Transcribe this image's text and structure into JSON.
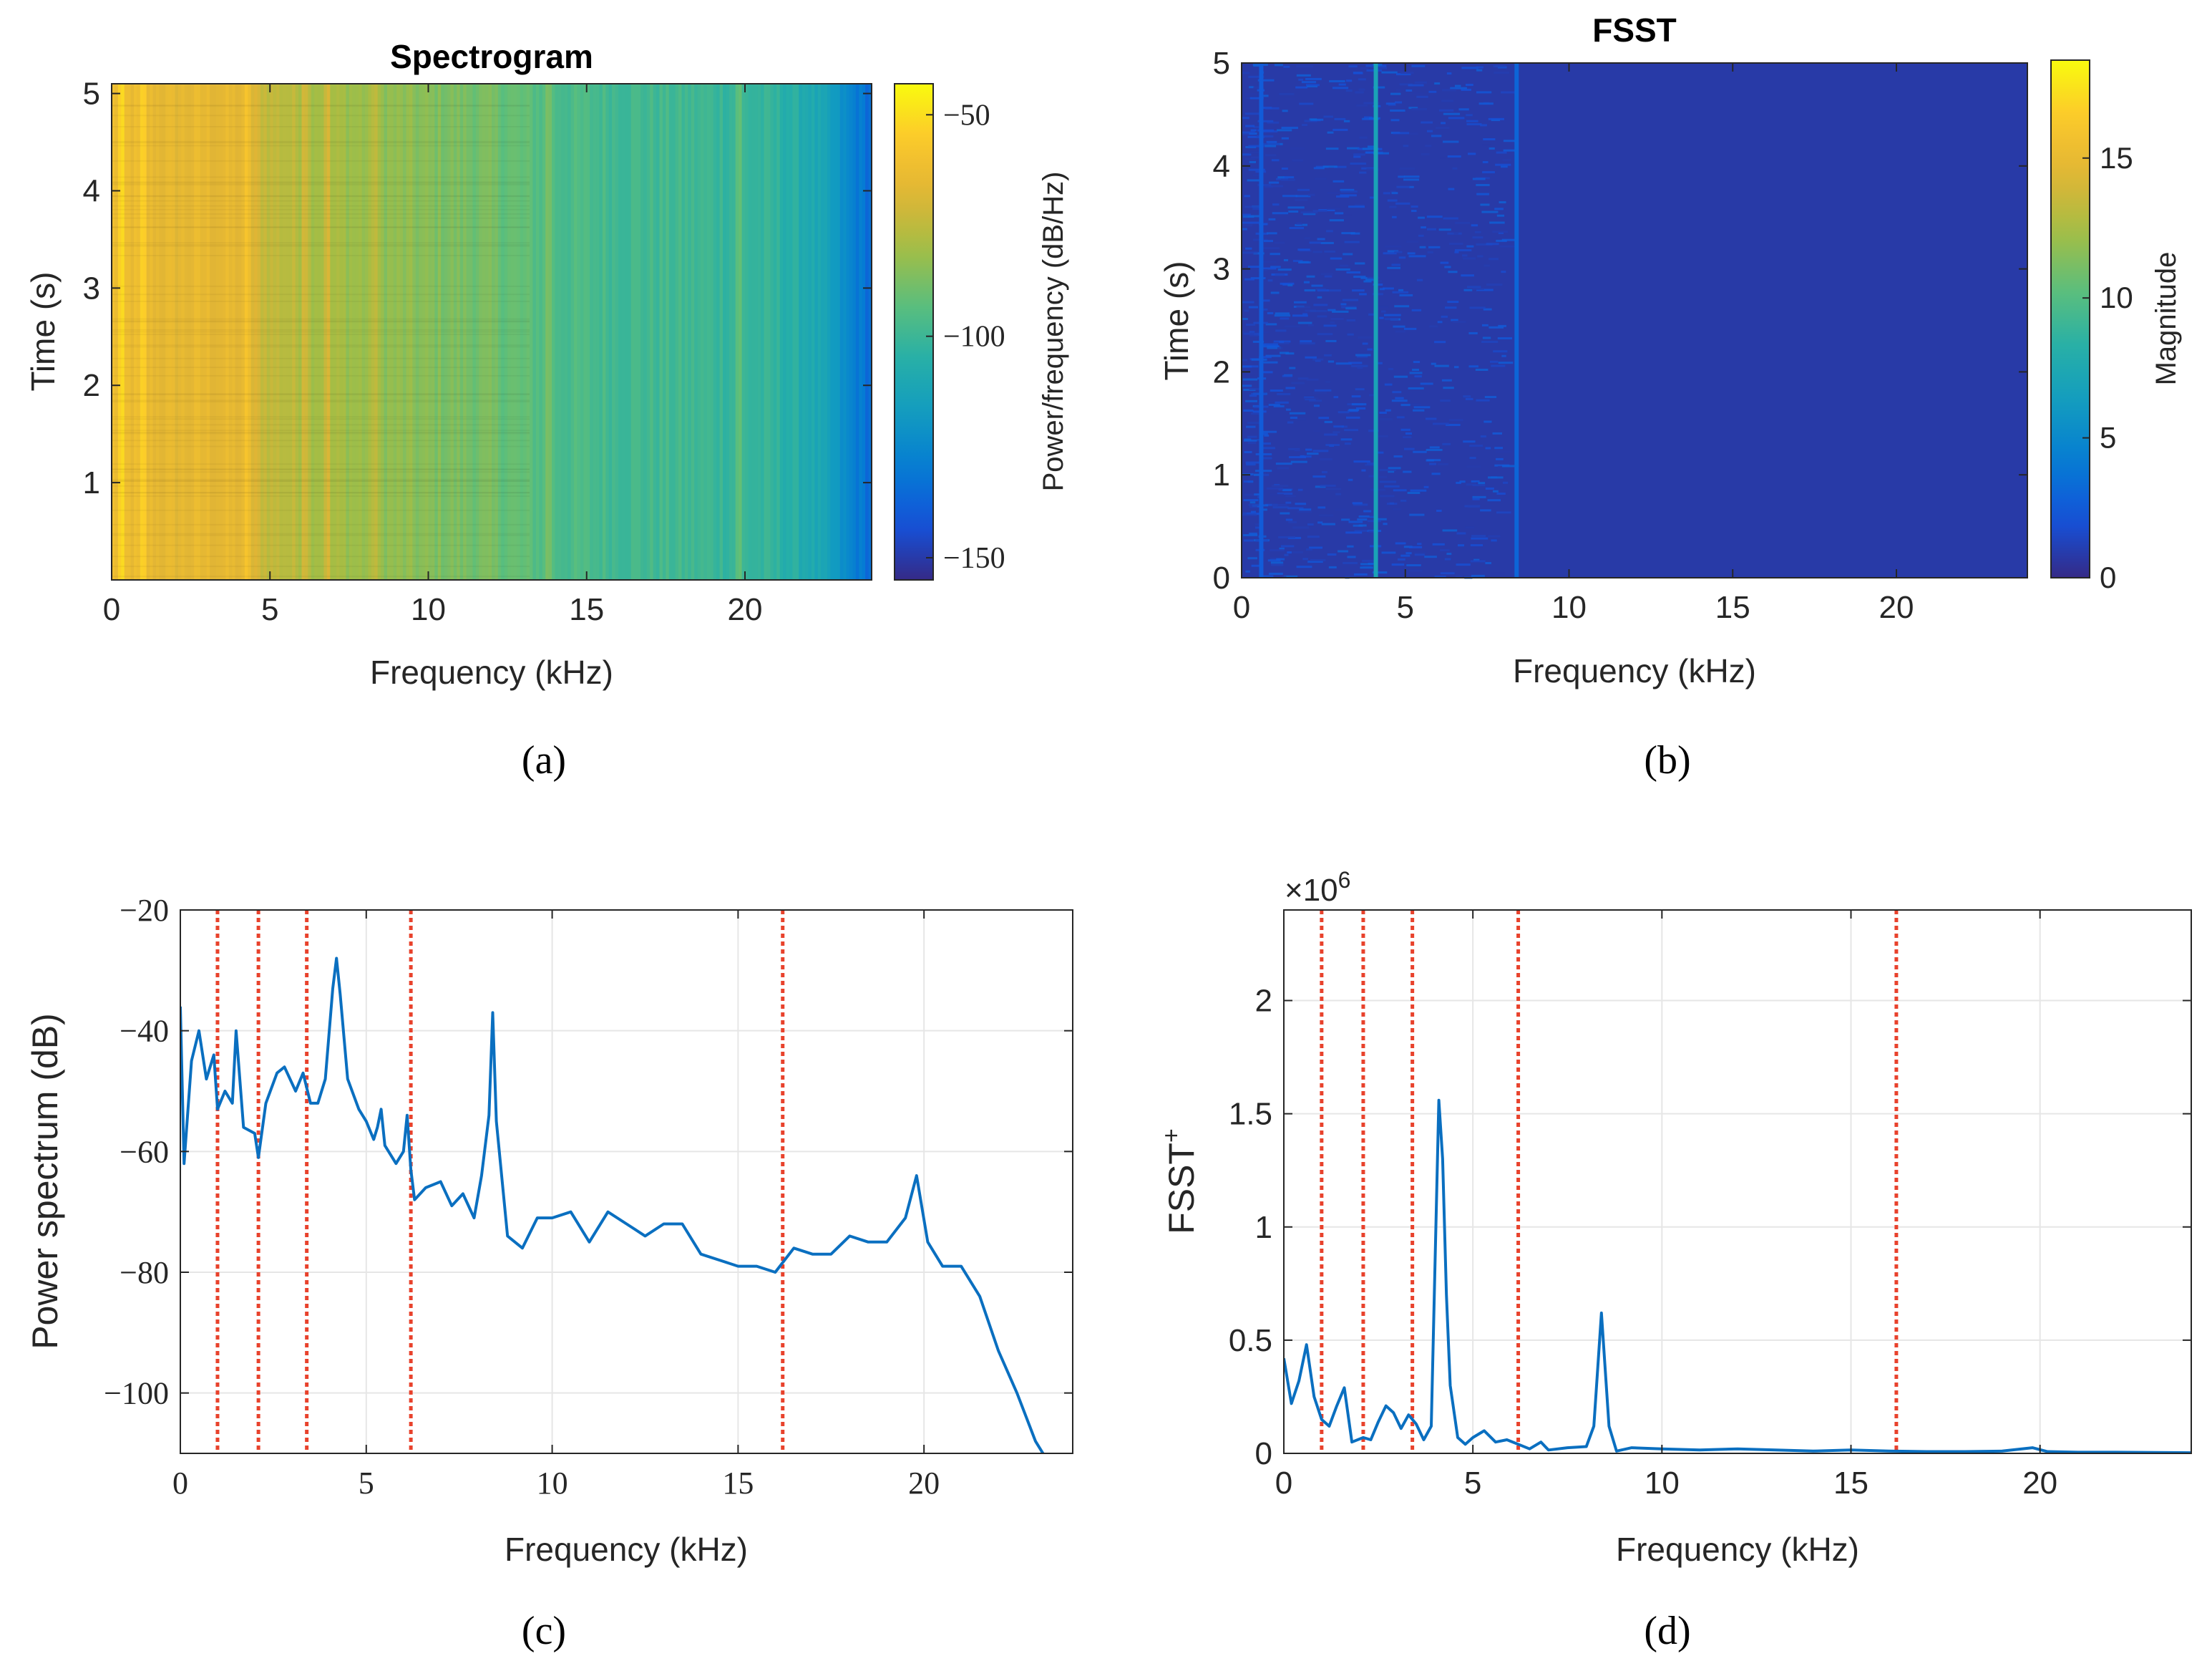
{
  "panels": {
    "a": {
      "caption": "(a)",
      "title": "Spectrogram",
      "xlabel": "Frequency (kHz)",
      "ylabel": "Time (s)",
      "colorbar_label": "Power/frequency (dB/Hz)"
    },
    "b": {
      "caption": "(b)",
      "title": "FSST",
      "xlabel": "Frequency (kHz)",
      "ylabel": "Time (s)",
      "colorbar_label": "Magnitude"
    },
    "c": {
      "caption": "(c)",
      "xlabel": "Frequency (kHz)",
      "ylabel": "Power spectrum (dB)"
    },
    "d": {
      "caption": "(d)",
      "xlabel": "Frequency (kHz)",
      "ylabel": "FSST",
      "ylabel_sup": "+",
      "exponent_label": "×10",
      "exponent_sup": "6"
    }
  },
  "colors": {
    "line": "#0a6fc0",
    "marker": "#e8422c",
    "grid": "#e6e6e6",
    "axis": "#262626"
  },
  "chart_data": [
    {
      "id": "a",
      "type": "heatmap",
      "title": "Spectrogram",
      "xlabel": "Frequency (kHz)",
      "ylabel": "Time (s)",
      "xlim": [
        0,
        24
      ],
      "ylim": [
        0,
        5.1
      ],
      "xticks": [
        0,
        5,
        10,
        15,
        20
      ],
      "yticks": [
        1,
        2,
        3,
        4,
        5
      ],
      "colormap": "parula",
      "clim": [
        -155,
        -43
      ],
      "colorbar_ticks": [
        -50,
        -100,
        -150
      ],
      "colorbar_tick_labels": [
        "−50",
        "−100",
        "−150"
      ],
      "colorbar_label": "Power/frequency (dB/Hz)",
      "level_by_frequency": [
        [
          0,
          -62
        ],
        [
          1,
          -64
        ],
        [
          2,
          -66
        ],
        [
          3,
          -65
        ],
        [
          4,
          -66
        ],
        [
          5,
          -74
        ],
        [
          6,
          -77
        ],
        [
          7,
          -80
        ],
        [
          8,
          -82
        ],
        [
          9,
          -84
        ],
        [
          10,
          -86
        ],
        [
          12,
          -89
        ],
        [
          14,
          -96
        ],
        [
          16,
          -98
        ],
        [
          18,
          -99
        ],
        [
          20,
          -101
        ],
        [
          21,
          -103
        ],
        [
          22,
          -108
        ],
        [
          22.8,
          -118
        ],
        [
          23.4,
          -128
        ],
        [
          24,
          -135
        ]
      ],
      "bright_lines_khz": [
        0.3,
        1.0,
        4.3,
        6.1,
        6.8,
        8.3,
        13.8,
        19.8
      ]
    },
    {
      "id": "b",
      "type": "heatmap",
      "title": "FSST",
      "xlabel": "Frequency (kHz)",
      "ylabel": "Time (s)",
      "xlim": [
        0,
        24
      ],
      "ylim": [
        0,
        5
      ],
      "xticks": [
        0,
        5,
        10,
        15,
        20
      ],
      "yticks": [
        0,
        1,
        2,
        3,
        4,
        5
      ],
      "colormap": "parula",
      "clim": [
        0,
        18.5
      ],
      "colorbar_ticks": [
        0,
        5,
        10,
        15
      ],
      "colorbar_label": "Magnitude",
      "background_magnitude": 0.8,
      "bright_lines": [
        {
          "khz": 0.6,
          "magnitude": 2.5
        },
        {
          "khz": 4.1,
          "magnitude": 7
        },
        {
          "khz": 8.4,
          "magnitude": 3
        }
      ]
    },
    {
      "id": "c",
      "type": "line",
      "xlabel": "Frequency (kHz)",
      "ylabel": "Power spectrum (dB)",
      "xlim": [
        0,
        24
      ],
      "ylim": [
        -110,
        -20
      ],
      "xticks": [
        0,
        5,
        10,
        15,
        20
      ],
      "yticks": [
        -20,
        -40,
        -60,
        -80,
        -100
      ],
      "ytick_labels": [
        "−20",
        "−40",
        "−60",
        "−80",
        "−100"
      ],
      "grid": true,
      "series": [
        {
          "points": [
            [
              0,
              -36
            ],
            [
              0.1,
              -62
            ],
            [
              0.3,
              -45
            ],
            [
              0.5,
              -40
            ],
            [
              0.7,
              -48
            ],
            [
              0.9,
              -44
            ],
            [
              1.0,
              -53
            ],
            [
              1.2,
              -50
            ],
            [
              1.4,
              -52
            ],
            [
              1.5,
              -40
            ],
            [
              1.7,
              -56
            ],
            [
              2.0,
              -57
            ],
            [
              2.1,
              -61
            ],
            [
              2.3,
              -52
            ],
            [
              2.6,
              -47
            ],
            [
              2.8,
              -46
            ],
            [
              3.1,
              -50
            ],
            [
              3.3,
              -47
            ],
            [
              3.5,
              -52
            ],
            [
              3.7,
              -52
            ],
            [
              3.9,
              -48
            ],
            [
              4.1,
              -33
            ],
            [
              4.2,
              -28
            ],
            [
              4.3,
              -34
            ],
            [
              4.5,
              -48
            ],
            [
              4.8,
              -53
            ],
            [
              5.0,
              -55
            ],
            [
              5.2,
              -58
            ],
            [
              5.3,
              -56
            ],
            [
              5.4,
              -53
            ],
            [
              5.5,
              -59
            ],
            [
              5.8,
              -62
            ],
            [
              6.0,
              -60
            ],
            [
              6.1,
              -54
            ],
            [
              6.2,
              -63
            ],
            [
              6.3,
              -68
            ],
            [
              6.6,
              -66
            ],
            [
              7.0,
              -65
            ],
            [
              7.3,
              -69
            ],
            [
              7.6,
              -67
            ],
            [
              7.9,
              -71
            ],
            [
              8.1,
              -64
            ],
            [
              8.3,
              -54
            ],
            [
              8.4,
              -37
            ],
            [
              8.5,
              -55
            ],
            [
              8.8,
              -74
            ],
            [
              9.2,
              -76
            ],
            [
              9.6,
              -71
            ],
            [
              10.0,
              -71
            ],
            [
              10.5,
              -70
            ],
            [
              11.0,
              -75
            ],
            [
              11.5,
              -70
            ],
            [
              12.0,
              -72
            ],
            [
              12.5,
              -74
            ],
            [
              13.0,
              -72
            ],
            [
              13.5,
              -72
            ],
            [
              14.0,
              -77
            ],
            [
              14.5,
              -78
            ],
            [
              15.0,
              -79
            ],
            [
              15.5,
              -79
            ],
            [
              16.0,
              -80
            ],
            [
              16.5,
              -76
            ],
            [
              17.0,
              -77
            ],
            [
              17.5,
              -77
            ],
            [
              18.0,
              -74
            ],
            [
              18.5,
              -75
            ],
            [
              19.0,
              -75
            ],
            [
              19.5,
              -71
            ],
            [
              19.8,
              -64
            ],
            [
              20.1,
              -75
            ],
            [
              20.5,
              -79
            ],
            [
              21.0,
              -79
            ],
            [
              21.5,
              -84
            ],
            [
              22.0,
              -93
            ],
            [
              22.5,
              -100
            ],
            [
              23.0,
              -108
            ],
            [
              23.3,
              -111
            ],
            [
              24,
              -111
            ]
          ]
        }
      ],
      "vertical_markers_khz": [
        1.0,
        2.1,
        3.4,
        6.2,
        16.2
      ]
    },
    {
      "id": "d",
      "type": "line",
      "xlabel": "Frequency (kHz)",
      "ylabel": "FSST+",
      "xlim": [
        0,
        24
      ],
      "ylim": [
        0,
        2400000
      ],
      "xticks": [
        0,
        5,
        10,
        15,
        20
      ],
      "yticks": [
        0,
        0.5,
        1,
        1.5,
        2
      ],
      "y_scale_exponent": 6,
      "grid": true,
      "series": [
        {
          "points": [
            [
              0,
              420000
            ],
            [
              0.2,
              220000
            ],
            [
              0.4,
              320000
            ],
            [
              0.6,
              480000
            ],
            [
              0.8,
              250000
            ],
            [
              1.0,
              150000
            ],
            [
              1.2,
              120000
            ],
            [
              1.4,
              210000
            ],
            [
              1.6,
              290000
            ],
            [
              1.8,
              50000
            ],
            [
              2.1,
              70000
            ],
            [
              2.3,
              60000
            ],
            [
              2.5,
              140000
            ],
            [
              2.7,
              210000
            ],
            [
              2.9,
              180000
            ],
            [
              3.1,
              110000
            ],
            [
              3.3,
              170000
            ],
            [
              3.5,
              130000
            ],
            [
              3.7,
              60000
            ],
            [
              3.9,
              120000
            ],
            [
              4.1,
              1560000
            ],
            [
              4.2,
              1300000
            ],
            [
              4.3,
              700000
            ],
            [
              4.4,
              300000
            ],
            [
              4.6,
              70000
            ],
            [
              4.8,
              40000
            ],
            [
              5.0,
              70000
            ],
            [
              5.3,
              100000
            ],
            [
              5.6,
              50000
            ],
            [
              5.9,
              60000
            ],
            [
              6.2,
              40000
            ],
            [
              6.5,
              20000
            ],
            [
              6.8,
              50000
            ],
            [
              7.0,
              15000
            ],
            [
              7.5,
              25000
            ],
            [
              8.0,
              30000
            ],
            [
              8.2,
              120000
            ],
            [
              8.4,
              620000
            ],
            [
              8.6,
              120000
            ],
            [
              8.8,
              10000
            ],
            [
              9.2,
              25000
            ],
            [
              10,
              20000
            ],
            [
              11,
              15000
            ],
            [
              12,
              20000
            ],
            [
              13,
              15000
            ],
            [
              14,
              10000
            ],
            [
              15,
              15000
            ],
            [
              16,
              10000
            ],
            [
              17,
              8000
            ],
            [
              18,
              8000
            ],
            [
              19,
              10000
            ],
            [
              19.8,
              25000
            ],
            [
              20.2,
              8000
            ],
            [
              21,
              5000
            ],
            [
              22,
              5000
            ],
            [
              23,
              4000
            ],
            [
              24,
              3000
            ]
          ]
        }
      ],
      "vertical_markers_khz": [
        1.0,
        2.1,
        3.4,
        6.2,
        16.2
      ]
    }
  ]
}
